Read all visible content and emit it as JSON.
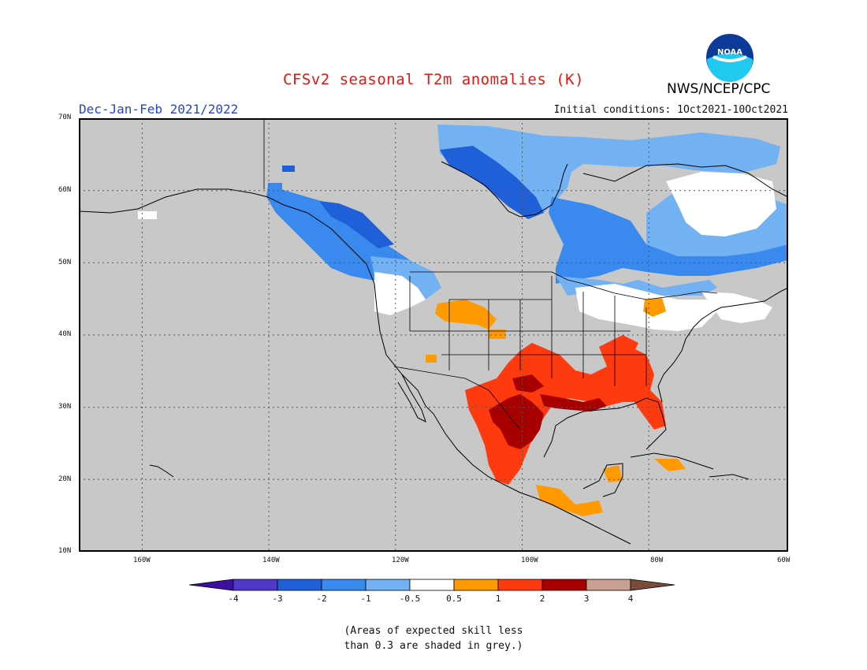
{
  "header": {
    "title": "CFSv2 seasonal T2m anomalies (K)",
    "period": "Dec-Jan-Feb 2021/2022",
    "initial_conditions": "Initial conditions: 1Oct2021-10Oct2021",
    "agency": "NWS/NCEP/CPC",
    "logo_text": "NOAA"
  },
  "map": {
    "lon_range": [
      -172,
      -60
    ],
    "lat_range": [
      10,
      70
    ],
    "lat_ticks": [
      "10N",
      "20N",
      "30N",
      "40N",
      "50N",
      "60N",
      "70N"
    ],
    "lon_ticks": [
      "160W",
      "140W",
      "120W",
      "100W",
      "80W",
      "60W"
    ],
    "background_color": "#c8c8c8",
    "grid": "dotted"
  },
  "colorbar": {
    "ticks": [
      "-4",
      "-3",
      "-2",
      "-1",
      "-0.5",
      "0.5",
      "1",
      "2",
      "3",
      "4"
    ],
    "colors": [
      "#3d0f9e",
      "#5038c8",
      "#1f5fd8",
      "#3a89ee",
      "#72b2f2",
      "#ffffff",
      "#ff9b00",
      "#ff3a0f",
      "#a80000",
      "#c9a08f",
      "#7a4a3a"
    ]
  },
  "footnote": {
    "line1": "(Areas of expected skill less",
    "line2": "than 0.3 are shaded in grey.)"
  }
}
